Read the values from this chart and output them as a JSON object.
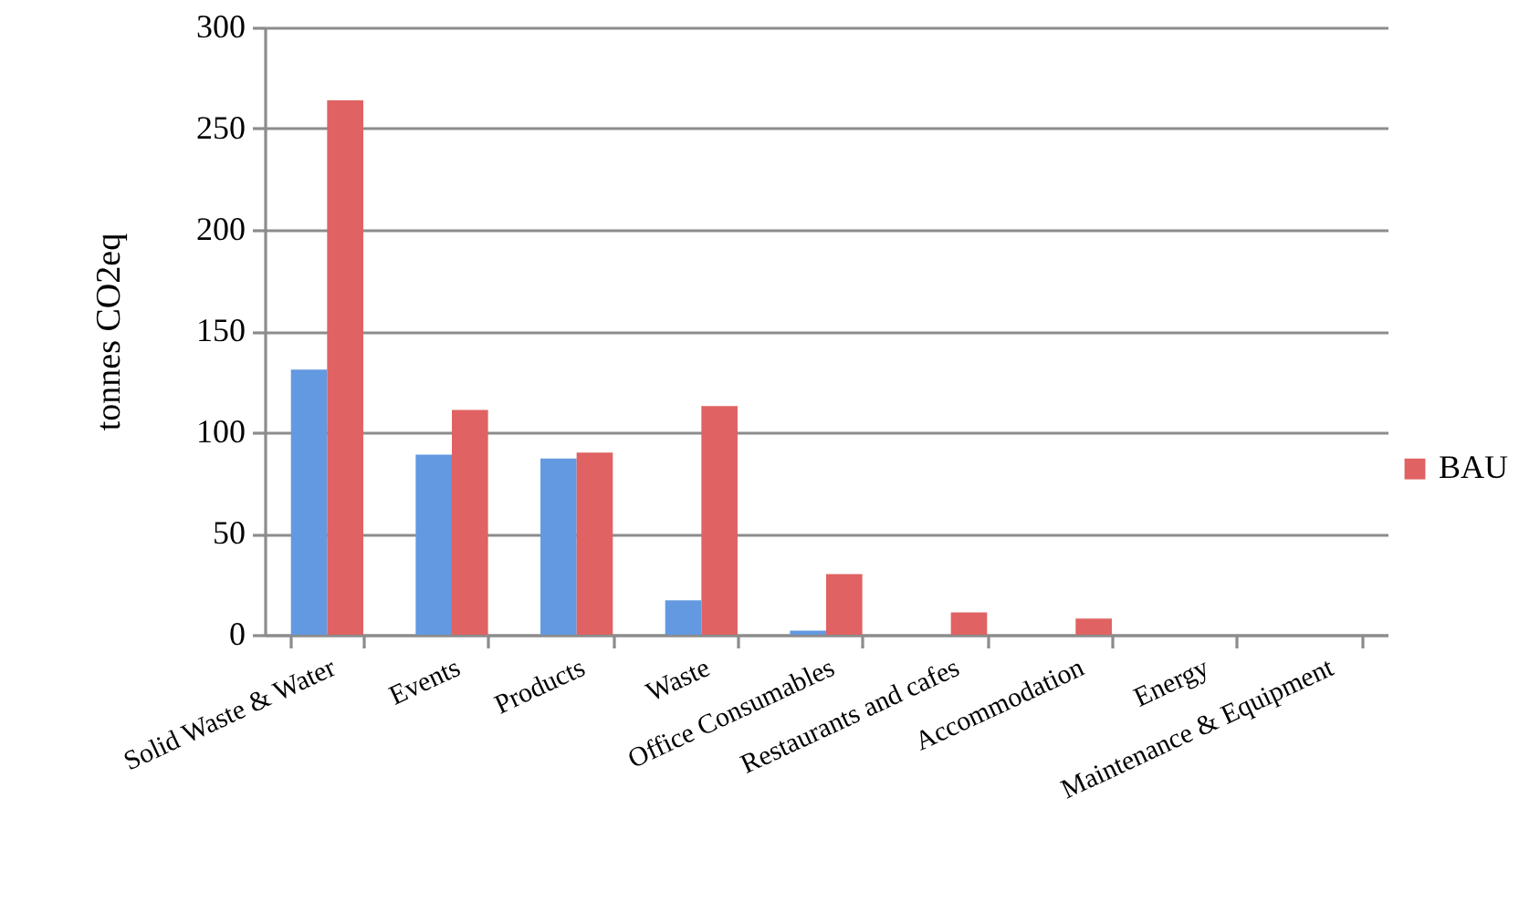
{
  "chart_data": {
    "type": "bar",
    "ylabel": "tonnes CO2eq",
    "categories": [
      "Solid Waste & Water",
      "Events",
      "Products",
      "Waste",
      "Office Consumables",
      "Restaurants and cafes",
      "Accommodation",
      "Energy",
      "Maintenance & Equipment"
    ],
    "series": [
      {
        "color": "#6399e0",
        "values": [
          131,
          89,
          87,
          17,
          2,
          0,
          0,
          0,
          0
        ]
      },
      {
        "name": "BAU",
        "color": "#e06262",
        "values": [
          264,
          111,
          90,
          113,
          30,
          11,
          8,
          0,
          0
        ]
      }
    ],
    "ylim": [
      0,
      300
    ],
    "yticks": [
      0,
      50,
      100,
      150,
      200,
      250,
      300
    ],
    "grid": "y",
    "legend": "right"
  }
}
